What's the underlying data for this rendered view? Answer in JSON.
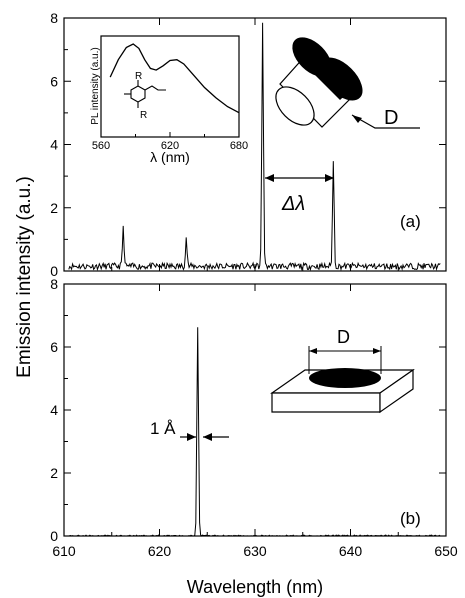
{
  "figure": {
    "ylabel": "Emission intensity (a.u.)",
    "xlabel": "Wavelength (nm)"
  },
  "chart_data": [
    {
      "type": "line",
      "panel_label": "(a)",
      "xlim": [
        610,
        650
      ],
      "ylim": [
        0,
        8
      ],
      "x_ticks": [
        610,
        620,
        630,
        640,
        650
      ],
      "y_ticks": [
        0,
        2,
        4,
        6,
        8
      ],
      "baseline": 0.15,
      "peaks": [
        {
          "x": 616.2,
          "y": 1.2
        },
        {
          "x": 622.8,
          "y": 0.9
        },
        {
          "x": 630.8,
          "y": 7.7
        },
        {
          "x": 638.2,
          "y": 3.3
        }
      ],
      "annotations": [
        "Δλ",
        "D"
      ],
      "grid": false
    },
    {
      "type": "line",
      "panel_label": "(b)",
      "xlim": [
        610,
        650
      ],
      "ylim": [
        0,
        8
      ],
      "x_ticks": [
        610,
        620,
        630,
        640,
        650
      ],
      "y_ticks": [
        0,
        2,
        4,
        6,
        8
      ],
      "baseline": 0.0,
      "peaks": [
        {
          "x": 624.0,
          "y": 6.6
        }
      ],
      "annotations": [
        "1 Å",
        "D"
      ],
      "grid": false
    },
    {
      "type": "line",
      "role": "inset",
      "xlabel": "λ (nm)",
      "ylabel": "PL intensity (a.u.)",
      "xlim": [
        560,
        680
      ],
      "x_ticks": [
        560,
        620,
        680
      ],
      "x": [
        568,
        575,
        582,
        588,
        593,
        598,
        603,
        608,
        614,
        620,
        626,
        632,
        640,
        650,
        660,
        670,
        680
      ],
      "y": [
        0.62,
        0.82,
        0.96,
        1.0,
        0.95,
        0.82,
        0.72,
        0.7,
        0.75,
        0.81,
        0.82,
        0.77,
        0.65,
        0.5,
        0.38,
        0.28,
        0.21
      ],
      "molecule_labels": [
        "R",
        "R"
      ]
    }
  ]
}
